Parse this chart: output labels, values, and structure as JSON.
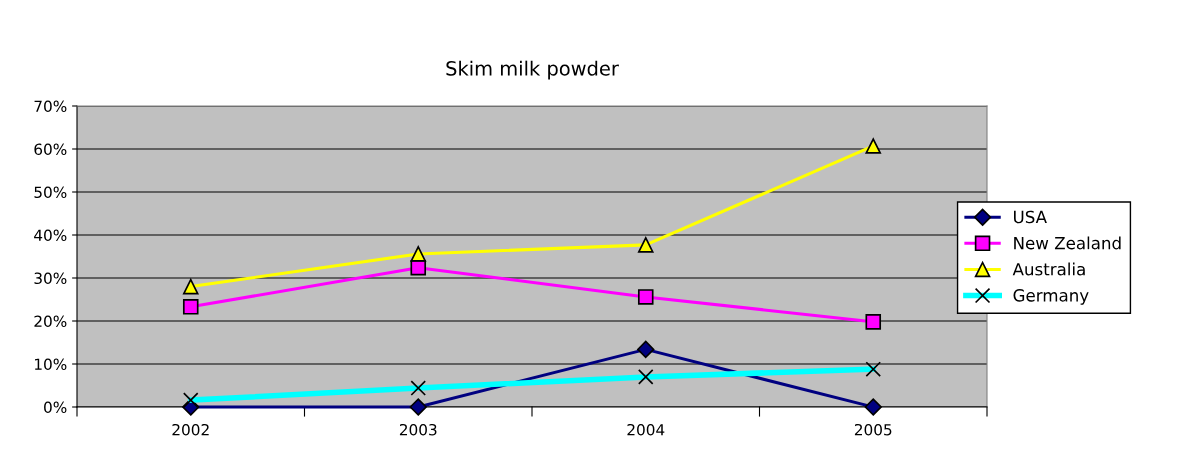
{
  "chart_data": {
    "type": "line",
    "title": "Skim milk powder",
    "categories": [
      "2002",
      "2003",
      "2004",
      "2005"
    ],
    "series": [
      {
        "name": "USA",
        "color": "#000080",
        "marker": "diamond",
        "values": [
          0,
          0,
          13.4,
          0
        ]
      },
      {
        "name": "New Zealand",
        "color": "#ff00ff",
        "marker": "square",
        "values": [
          23.3,
          32.4,
          25.6,
          19.8
        ]
      },
      {
        "name": "Australia",
        "color": "#ffff00",
        "marker": "triangle",
        "values": [
          28.0,
          35.6,
          37.7,
          60.7
        ]
      },
      {
        "name": "Germany",
        "color": "#00ffff",
        "marker": "cross",
        "values": [
          1.6,
          4.4,
          7.0,
          8.8
        ]
      }
    ],
    "ylim": [
      0,
      70
    ],
    "yticks": [
      {
        "value": 0,
        "label": "0%"
      },
      {
        "value": 10,
        "label": "10%"
      },
      {
        "value": 20,
        "label": "20%"
      },
      {
        "value": 30,
        "label": "30%"
      },
      {
        "value": 40,
        "label": "40%"
      },
      {
        "value": 50,
        "label": "50%"
      },
      {
        "value": 60,
        "label": "60%"
      },
      {
        "value": 70,
        "label": "70%"
      }
    ],
    "grid": "y",
    "legend": "right",
    "line_style": "solid"
  }
}
